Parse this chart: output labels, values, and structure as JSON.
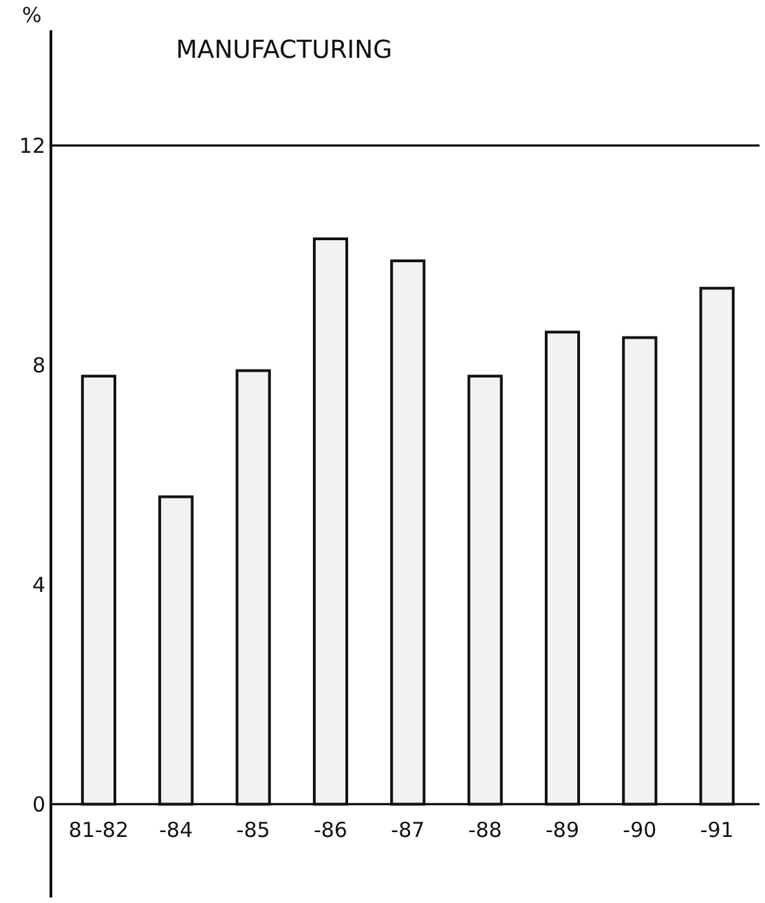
{
  "chart_data": {
    "type": "bar",
    "title": "MANUFACTURING",
    "ylabel": "%",
    "categories": [
      "81-82",
      "-84",
      "-85",
      "-86",
      "-87",
      "-88",
      "-89",
      "-90",
      "-91"
    ],
    "values": [
      7.8,
      5.6,
      7.9,
      10.3,
      9.9,
      7.8,
      8.6,
      8.5,
      9.4
    ],
    "color": "#f2f2f2",
    "ylim": [
      -1.7,
      14.1
    ],
    "yticks": [
      0,
      4,
      8,
      12
    ],
    "ref_lines": [
      {
        "axis": "y",
        "value": 0
      },
      {
        "axis": "y",
        "value": 12
      }
    ],
    "grid": false
  }
}
